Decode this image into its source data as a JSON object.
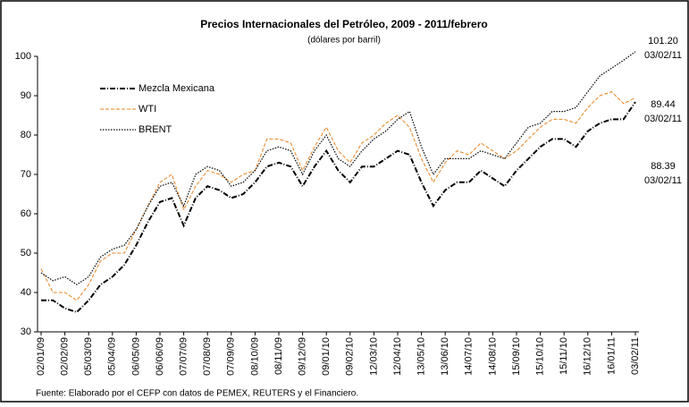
{
  "chart_data": {
    "type": "line",
    "title": "Precios Internacionales del Petróleo, 2009 - 2011/febrero",
    "subtitle": "(dólares por barril)",
    "source": "Fuente: Elaborado por el CEFP con datos de PEMEX, REUTERS y el Financiero.",
    "categories": [
      "02/01/09",
      null,
      "02/02/09",
      null,
      "05/03/09",
      null,
      "05/04/09",
      null,
      "06/05/09",
      null,
      "06/06/09",
      null,
      "07/07/09",
      null,
      "07/08/09",
      null,
      "07/09/09",
      null,
      "08/10/09",
      null,
      "08/11/09",
      null,
      "09/12/09",
      null,
      "09/01/10",
      null,
      "09/02/10",
      null,
      "12/03/10",
      null,
      "12/04/10",
      null,
      "13/05/10",
      null,
      "13/06/10",
      null,
      "14/07/10",
      null,
      "14/08/10",
      null,
      "15/09/10",
      null,
      "15/10/10",
      null,
      "15/11/10",
      null,
      "16/12/10",
      null,
      "16/01/11",
      null,
      "03/02/11"
    ],
    "series": [
      {
        "name": "Mezcla Mexicana",
        "color": "#000000",
        "style": "dashdot",
        "values": [
          38,
          38,
          36,
          35,
          38,
          42,
          44,
          47,
          52,
          58,
          63,
          64,
          57,
          64,
          67,
          66,
          64,
          65,
          68,
          72,
          73,
          72,
          67,
          72,
          76,
          71,
          68,
          72,
          72,
          74,
          76,
          75,
          68,
          62,
          66,
          68,
          68,
          71,
          69,
          67,
          71,
          74,
          77,
          79,
          79,
          77,
          81,
          83,
          84,
          84,
          88.39
        ]
      },
      {
        "name": "WTI",
        "color": "#e8821e",
        "style": "dashed",
        "values": [
          46,
          40,
          40,
          38,
          42,
          48,
          50,
          50,
          56,
          62,
          68,
          70,
          61,
          67,
          71,
          70,
          68,
          70,
          71,
          79,
          79,
          78,
          71,
          77,
          82,
          76,
          73,
          78,
          80,
          83,
          85,
          82,
          74,
          68,
          73,
          76,
          75,
          78,
          76,
          74,
          76,
          79,
          82,
          84,
          84,
          83,
          87,
          90,
          91,
          88,
          89.44
        ]
      },
      {
        "name": "BRENT",
        "color": "#000000",
        "style": "dotted",
        "values": [
          45,
          43,
          44,
          42,
          44,
          49,
          51,
          52,
          56,
          62,
          67,
          68,
          62,
          70,
          72,
          71,
          67,
          68,
          71,
          76,
          77,
          76,
          70,
          76,
          80,
          74,
          72,
          76,
          79,
          81,
          84,
          86,
          77,
          70,
          74,
          74,
          74,
          76,
          75,
          74,
          78,
          82,
          83,
          86,
          86,
          87,
          91,
          95,
          97,
          99,
          101.2
        ]
      }
    ],
    "annotations": [
      {
        "value": "101.20",
        "date": "03/02/11"
      },
      {
        "value": "89.44",
        "date": "03/02/11"
      },
      {
        "value": "88.39",
        "date": "03/02/11"
      }
    ],
    "ylim": [
      30,
      100
    ],
    "yticks": [
      30,
      40,
      50,
      60,
      70,
      80,
      90,
      100
    ],
    "grid": false,
    "legend": "upper left"
  }
}
